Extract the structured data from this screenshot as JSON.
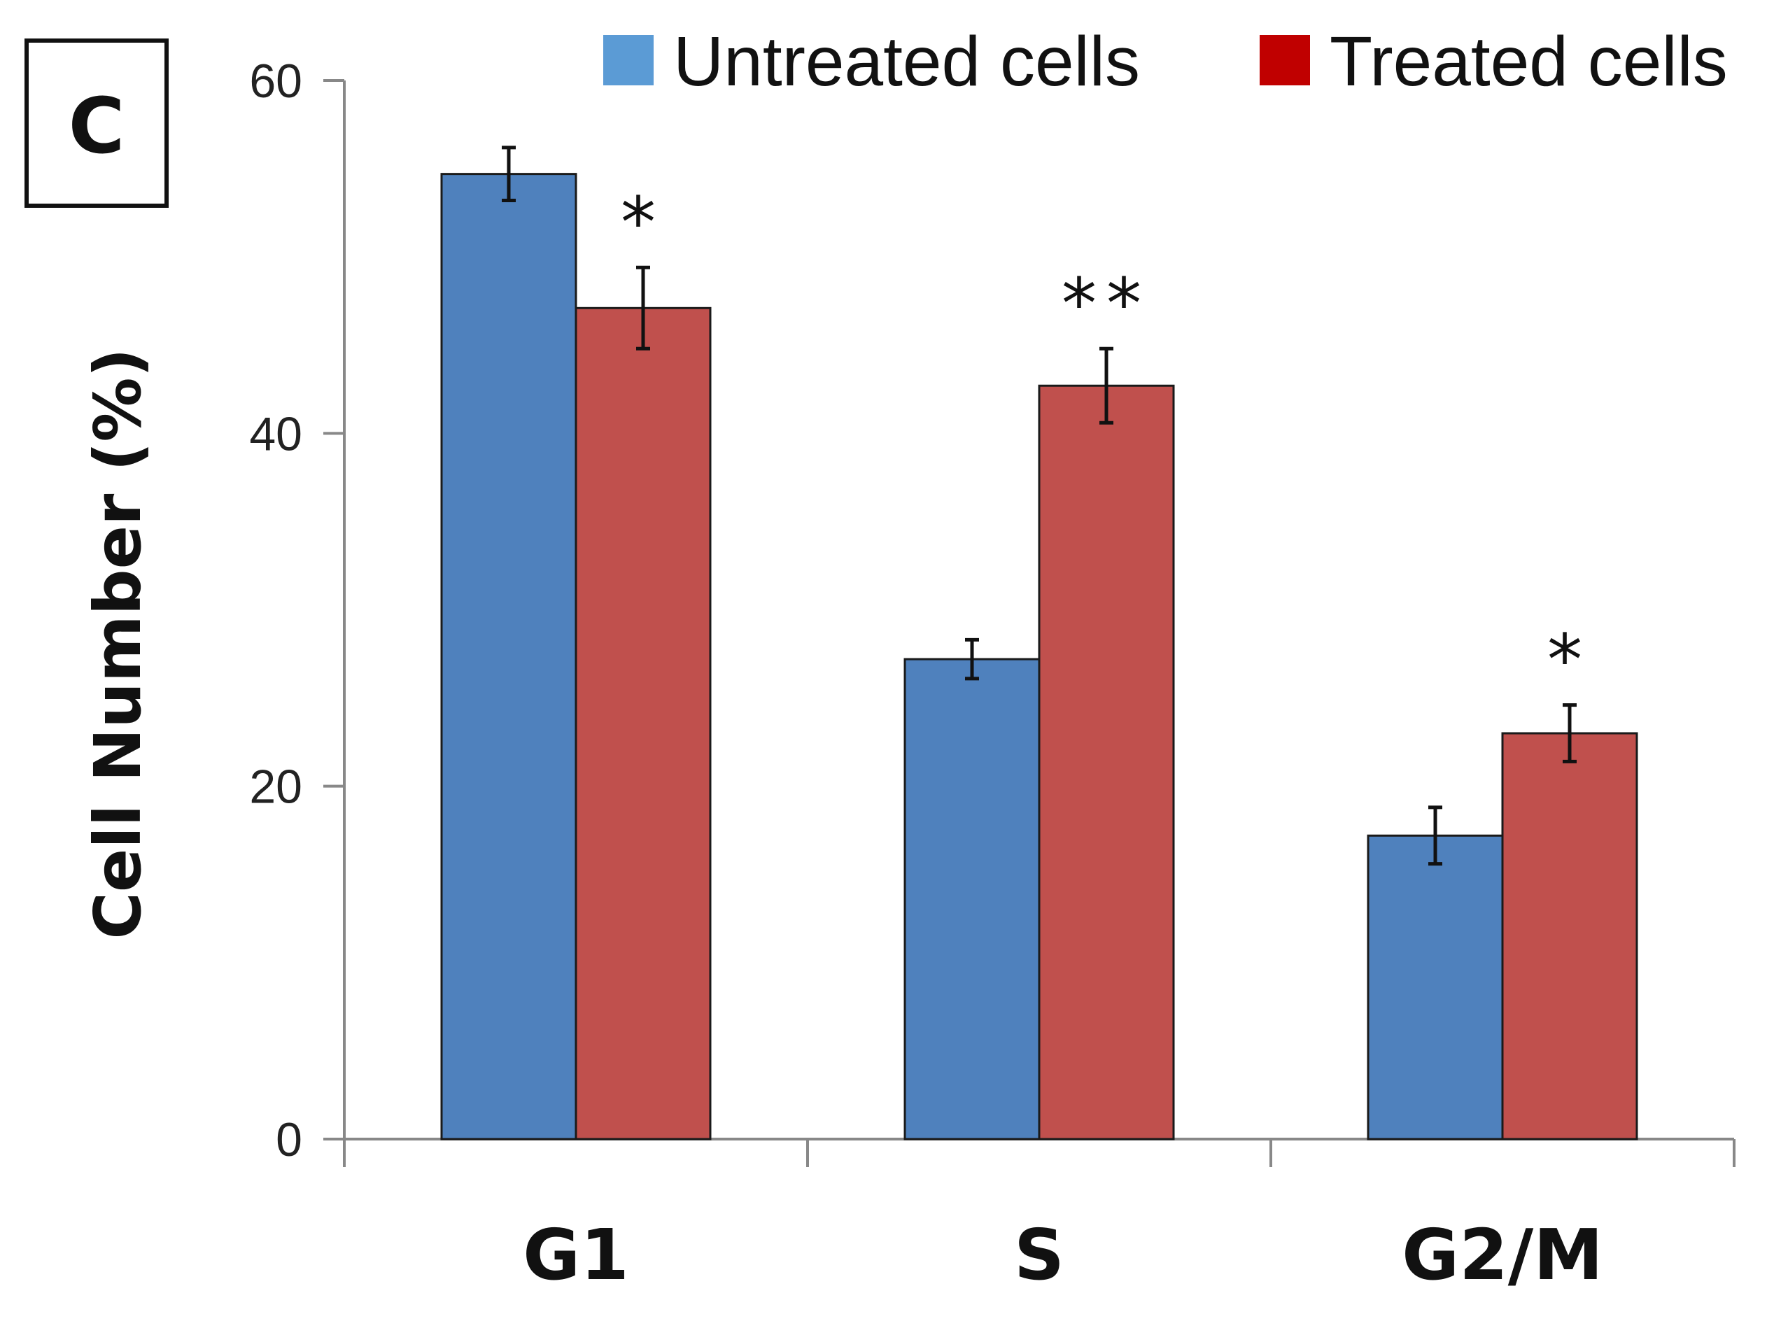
{
  "panel_label": "C",
  "chart_data": {
    "type": "bar",
    "title": "",
    "xlabel": "",
    "ylabel": "Cell Number (%)",
    "ylim": [
      0,
      60
    ],
    "yticks": [
      "0",
      "20",
      "40",
      "60"
    ],
    "grid": false,
    "legend_position": "top-right",
    "categories": [
      "G1",
      "S",
      "G2/M"
    ],
    "series": [
      {
        "name": "Untreated cells",
        "color": "#4f81bd",
        "legend_color": "#5b9bd5",
        "values": [
          54.7,
          27.2,
          17.2
        ],
        "errors": [
          1.5,
          1.1,
          1.6
        ],
        "significance": [
          "",
          "",
          ""
        ]
      },
      {
        "name": "Treated cells",
        "color": "#c0504d",
        "legend_color": "#c00000",
        "values": [
          47.1,
          42.7,
          23.0
        ],
        "errors": [
          2.3,
          2.1,
          1.6
        ],
        "significance": [
          "*",
          "**",
          "*"
        ]
      }
    ]
  }
}
